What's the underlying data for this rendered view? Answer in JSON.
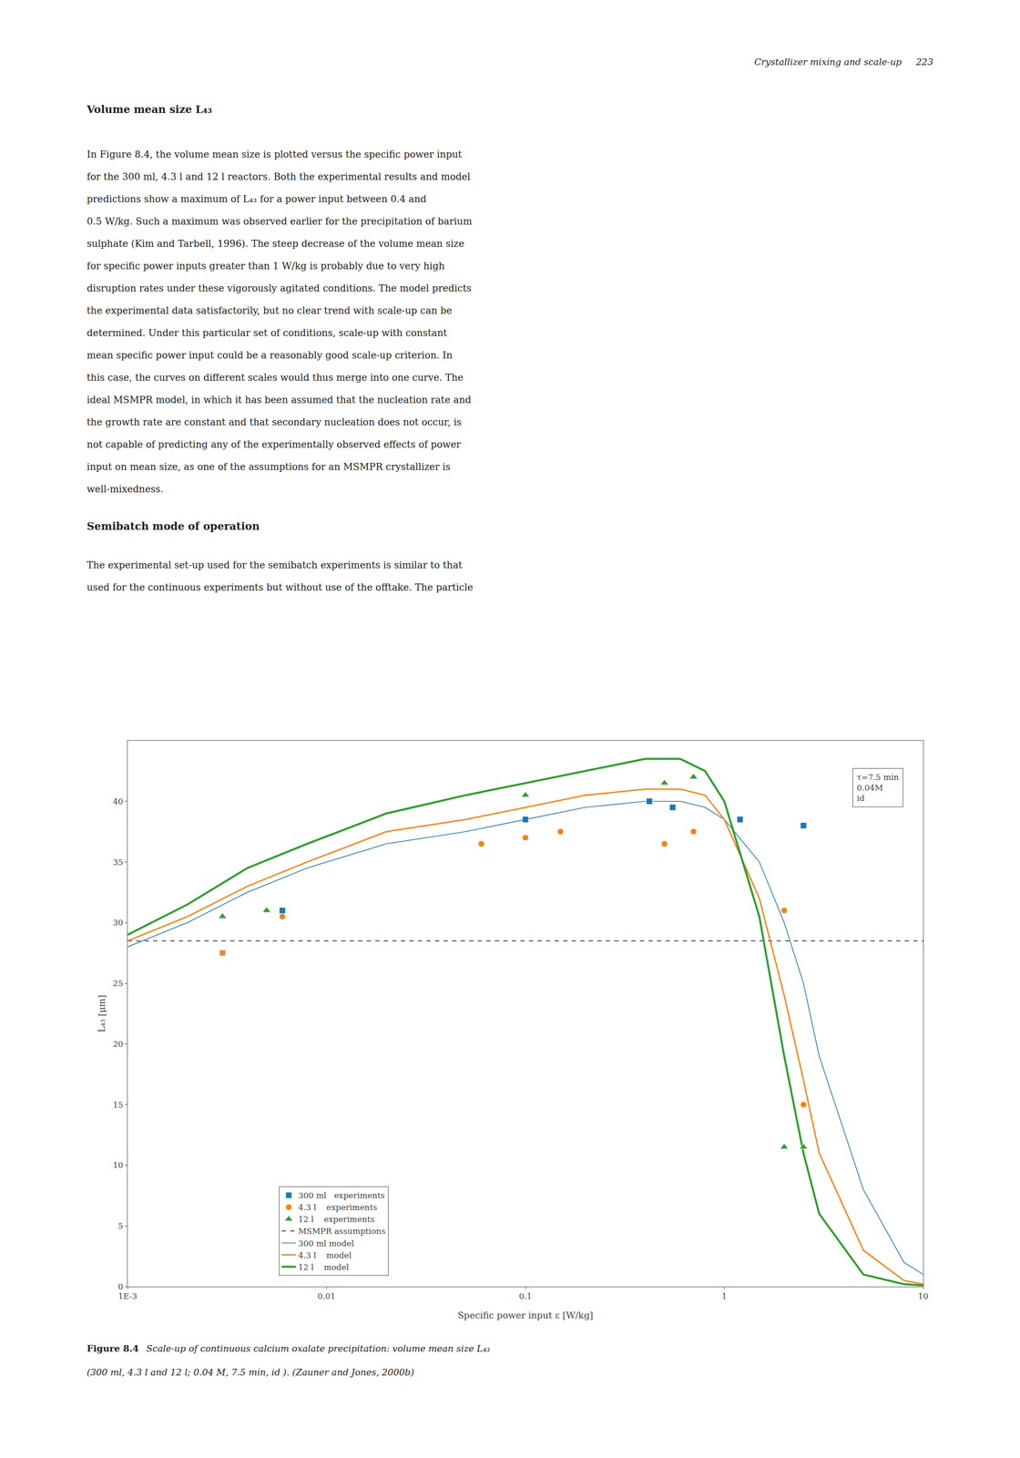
{
  "page_header": "Crystallizer mixing and scale-up     223",
  "section1_title": "Volume mean size L₄₃",
  "body_text1": [
    "In Figure 8.4, the volume mean size is plotted versus the specific power input",
    "for the 300 ml, 4.3 l and 12 l reactors. Both the experimental results and model",
    "predictions show a maximum of L₄₃ for a power input between 0.4 and",
    "0.5 W/kg. Such a maximum was observed earlier for the precipitation of barium",
    "sulphate (Kim and Tarbell, 1996). The steep decrease of the volume mean size",
    "for specific power inputs greater than 1 W/kg is probably due to very high",
    "disruption rates under these vigorously agitated conditions. The model predicts",
    "the experimental data satisfactorily, but no clear trend with scale-up can be",
    "determined. Under this particular set of conditions, scale-up with constant",
    "mean specific power input could be a reasonably good scale-up criterion. In",
    "this case, the curves on different scales would thus merge into one curve. The",
    "ideal MSMPR model, in which it has been assumed that the nucleation rate and",
    "the growth rate are constant and that secondary nucleation does not occur, is",
    "not capable of predicting any of the experimentally observed effects of power",
    "input on mean size, as one of the assumptions for an MSMPR crystallizer is",
    "well-mixedness."
  ],
  "section2_title": "Semibatch mode of operation",
  "body_text2": [
    "The experimental set-up used for the semibatch experiments is similar to that",
    "used for the continuous experiments but without use of the offtake. The particle"
  ],
  "figure_label": "Figure 8.4",
  "caption": [
    "Scale-up of continuous calcium oxalate precipitation: volume mean size L₄₃",
    "(300 ml, 4.3 l and 12 l; 0.04 M, 7.5 min, id ). (Zauner and Jones, 2000b)"
  ],
  "chart_data": {
    "type": "line",
    "xlabel": "Specific power input ε [W/kg]",
    "ylabel": "L₄₃ [μm]",
    "log": "x",
    "grid": false,
    "legend": "lower left",
    "xlim": [
      0.001,
      10
    ],
    "xticks": [
      {
        "value": 0.001,
        "label": "1E-3"
      },
      0.01,
      0.1,
      1,
      10
    ],
    "ylim": [
      0,
      45
    ],
    "yticks": [
      0,
      5,
      10,
      15,
      20,
      25,
      30,
      35,
      40
    ],
    "annotation": "τ=7.5 min\n0.04M\nid",
    "series": [
      {
        "name": "300 ml   experiments",
        "type": "scatter",
        "marker": "square",
        "color": "#1f77b4",
        "x": [
          0.003,
          0.006,
          0.1,
          0.42,
          0.55,
          1.2,
          2.5
        ],
        "values": [
          27.5,
          31.0,
          38.5,
          40.0,
          39.5,
          38.5,
          38.0
        ]
      },
      {
        "name": "4.3 l    experiments",
        "type": "scatter",
        "marker": "circle",
        "color": "#ff7f0e",
        "x": [
          0.003,
          0.006,
          0.06,
          0.1,
          0.15,
          0.5,
          0.7,
          2.0,
          2.5
        ],
        "values": [
          27.5,
          30.5,
          36.5,
          37.0,
          37.5,
          36.5,
          37.5,
          31.0,
          15.0
        ]
      },
      {
        "name": "12 l    experiments",
        "type": "scatter",
        "marker": "triangle-up",
        "color": "#2ca02c",
        "x": [
          0.003,
          0.005,
          0.1,
          0.5,
          0.7,
          2.0,
          2.5
        ],
        "values": [
          30.5,
          31.0,
          40.5,
          41.5,
          42.0,
          11.5,
          11.5
        ]
      },
      {
        "name": "MSMPR assumptions",
        "type": "hline",
        "line_style": "dashed",
        "color": "#444444",
        "values": [
          28.5
        ]
      },
      {
        "name": "300 ml model",
        "type": "line",
        "line_style": "solid",
        "color": "#1f77b4",
        "x": [
          0.001,
          0.002,
          0.004,
          0.008,
          0.02,
          0.05,
          0.1,
          0.2,
          0.4,
          0.6,
          0.8,
          1.0,
          1.5,
          2.0,
          2.5,
          3.0,
          5.0,
          8.0,
          10.0
        ],
        "values": [
          28.0,
          30.0,
          32.5,
          34.5,
          36.5,
          37.5,
          38.5,
          39.5,
          40.0,
          40.0,
          39.5,
          38.5,
          35.0,
          30.0,
          25.0,
          19.0,
          8.0,
          2.0,
          1.0
        ]
      },
      {
        "name": "4.3 l    model",
        "type": "line",
        "line_style": "solid",
        "color": "#ff7f0e",
        "x": [
          0.001,
          0.002,
          0.004,
          0.008,
          0.02,
          0.05,
          0.1,
          0.2,
          0.4,
          0.6,
          0.8,
          1.0,
          1.5,
          2.0,
          2.5,
          3.0,
          5.0,
          8.0,
          10.0
        ],
        "values": [
          28.5,
          30.5,
          33.0,
          35.0,
          37.5,
          38.5,
          39.5,
          40.5,
          41.0,
          41.0,
          40.5,
          38.5,
          32.0,
          24.0,
          17.0,
          11.0,
          3.0,
          0.5,
          0.2
        ]
      },
      {
        "name": "12 l    model",
        "type": "line",
        "line_style": "solid",
        "color": "#2ca02c",
        "x": [
          0.001,
          0.002,
          0.004,
          0.008,
          0.02,
          0.05,
          0.1,
          0.2,
          0.4,
          0.6,
          0.8,
          1.0,
          1.5,
          2.0,
          2.5,
          3.0,
          5.0,
          8.0,
          10.0
        ],
        "values": [
          29.0,
          31.5,
          34.5,
          36.5,
          39.0,
          40.5,
          41.5,
          42.5,
          43.5,
          43.5,
          42.5,
          40.0,
          30.5,
          19.0,
          11.0,
          6.0,
          1.0,
          0.2,
          0.1
        ]
      }
    ]
  }
}
